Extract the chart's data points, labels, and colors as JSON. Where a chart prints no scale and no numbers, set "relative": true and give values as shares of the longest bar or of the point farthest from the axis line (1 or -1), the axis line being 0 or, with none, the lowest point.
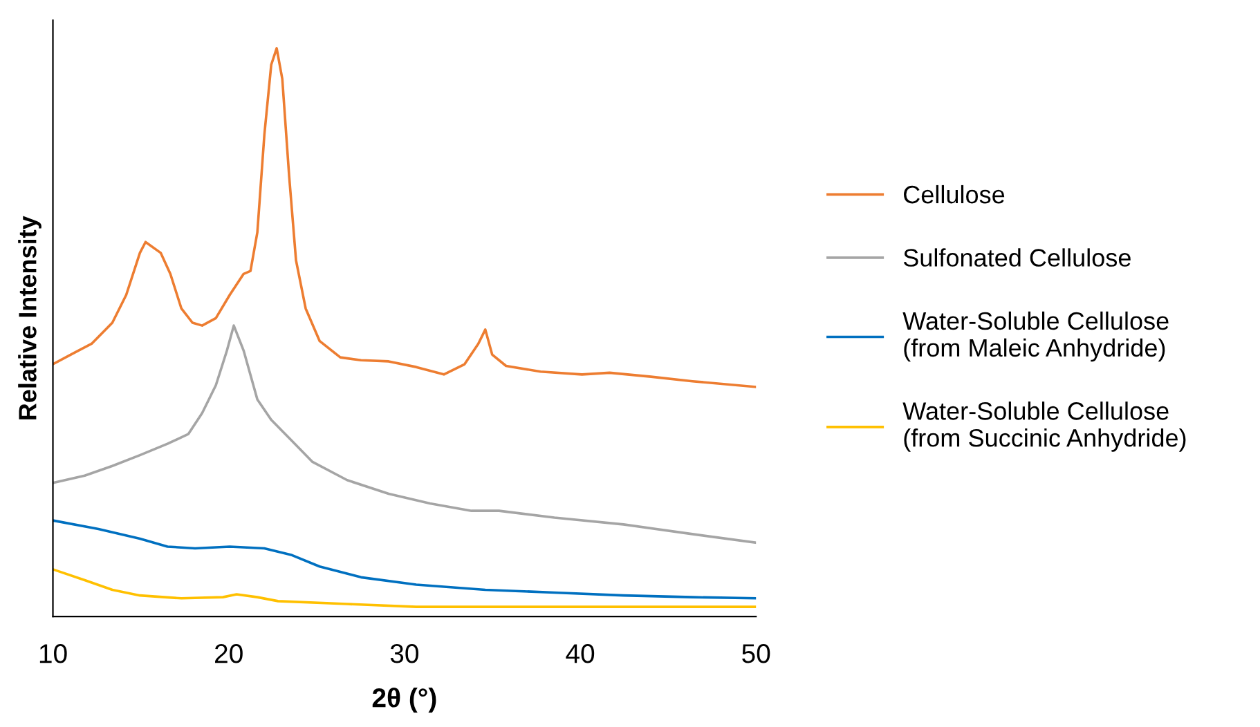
{
  "chart_data": {
    "type": "line",
    "xlabel": "2θ (°)",
    "ylabel": "Relative Intensity",
    "relative": true,
    "xlim": [
      10,
      50
    ],
    "xticks": [
      10,
      20,
      30,
      40,
      50
    ],
    "grid": false,
    "legend": "right",
    "marker": "none",
    "line_style": "solid",
    "series": [
      {
        "name": "Cellulose",
        "color": "#ed7d31",
        "x": [
          10,
          11.02,
          12.2,
          13.38,
          14.17,
          14.95,
          15.27,
          16.13,
          16.68,
          17.31,
          17.94,
          18.49,
          19.27,
          20.06,
          20.85,
          21.24,
          21.63,
          22.03,
          22.42,
          22.73,
          23.05,
          23.44,
          23.83,
          24.38,
          25.17,
          26.35,
          27.53,
          29.1,
          30.67,
          32.24,
          33.42,
          34.2,
          34.6,
          34.99,
          35.78,
          37.74,
          40.1,
          41.67,
          44.03,
          46.39,
          50
        ],
        "values": [
          0.444,
          0.461,
          0.48,
          0.517,
          0.566,
          0.64,
          0.659,
          0.64,
          0.603,
          0.542,
          0.517,
          0.512,
          0.525,
          0.566,
          0.603,
          0.608,
          0.676,
          0.848,
          0.971,
          1.0,
          0.946,
          0.775,
          0.627,
          0.542,
          0.485,
          0.456,
          0.451,
          0.449,
          0.439,
          0.426,
          0.444,
          0.48,
          0.505,
          0.461,
          0.441,
          0.431,
          0.426,
          0.429,
          0.422,
          0.414,
          0.404
        ]
      },
      {
        "name": "Sulfonated Cellulose",
        "color": "#a5a5a5",
        "x": [
          10,
          11.81,
          13.38,
          14.95,
          16.52,
          17.7,
          18.49,
          19.27,
          19.9,
          20.29,
          20.85,
          21.63,
          22.42,
          23.6,
          24.77,
          26.74,
          29.1,
          31.45,
          33.81,
          35.38,
          38.53,
          42.46,
          46.39,
          50
        ],
        "values": [
          0.235,
          0.248,
          0.265,
          0.284,
          0.304,
          0.321,
          0.358,
          0.407,
          0.468,
          0.512,
          0.468,
          0.382,
          0.346,
          0.309,
          0.272,
          0.24,
          0.216,
          0.199,
          0.186,
          0.186,
          0.174,
          0.162,
          0.145,
          0.13
        ]
      },
      {
        "name": "Water-Soluble Cellulose\n(from Maleic Anhydride)",
        "color": "#0070c0",
        "x": [
          10,
          12.59,
          14.95,
          16.52,
          18.09,
          20.06,
          22.03,
          23.6,
          25.17,
          27.53,
          30.67,
          34.6,
          38.53,
          42.46,
          46.39,
          50
        ],
        "values": [
          0.169,
          0.154,
          0.137,
          0.123,
          0.12,
          0.123,
          0.12,
          0.108,
          0.088,
          0.069,
          0.056,
          0.047,
          0.042,
          0.037,
          0.034,
          0.032
        ]
      },
      {
        "name": "Water-Soluble Cellulose\n(from Succinic Anhydride)",
        "color": "#ffc000",
        "x": [
          10,
          11.81,
          13.38,
          14.95,
          17.31,
          19.67,
          20.45,
          21.63,
          22.81,
          26.74,
          30.67,
          38.53,
          50
        ],
        "values": [
          0.083,
          0.064,
          0.047,
          0.037,
          0.032,
          0.034,
          0.039,
          0.034,
          0.027,
          0.022,
          0.017,
          0.017,
          0.017
        ]
      }
    ]
  }
}
